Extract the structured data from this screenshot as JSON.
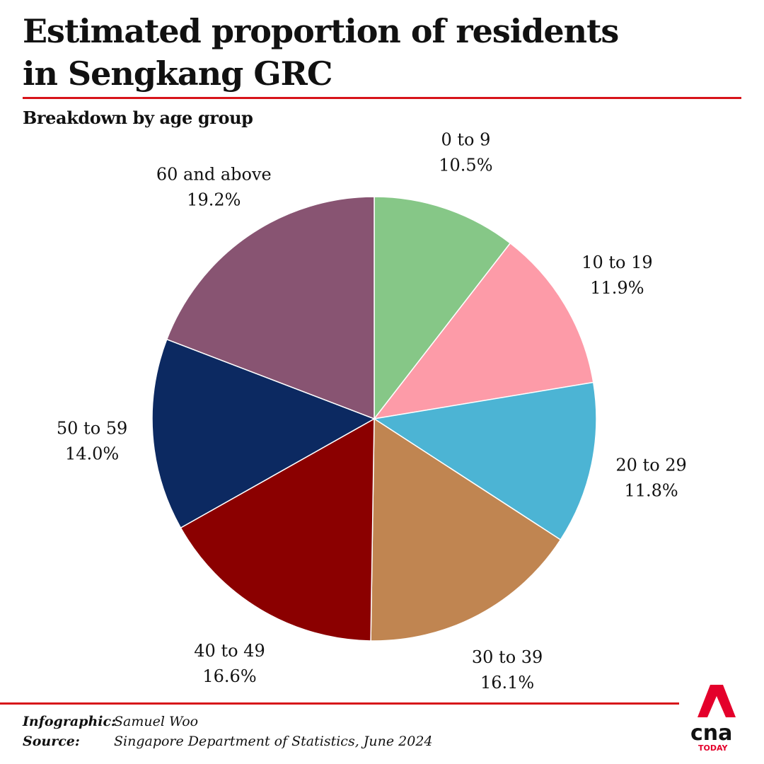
{
  "header": {
    "title_line1": "Estimated proportion of residents",
    "title_line2": "in Sengkang GRC",
    "subtitle": "Breakdown by age group"
  },
  "chart_data": {
    "type": "pie",
    "title": "Estimated proportion of residents in Sengkang GRC",
    "subtitle": "Breakdown by age group",
    "start": "12 o'clock",
    "direction": "clockwise",
    "slices": [
      {
        "label": "0 to 9",
        "value": 10.5,
        "value_label": "10.5%",
        "color": "#86c787"
      },
      {
        "label": "10 to 19",
        "value": 11.9,
        "value_label": "11.9%",
        "color": "#fd9ba8"
      },
      {
        "label": "20 to 29",
        "value": 11.8,
        "value_label": "11.8%",
        "color": "#4cb4d4"
      },
      {
        "label": "30 to 39",
        "value": 16.1,
        "value_label": "16.1%",
        "color": "#c08551"
      },
      {
        "label": "40 to 49",
        "value": 16.6,
        "value_label": "16.6%",
        "color": "#8b0000"
      },
      {
        "label": "50 to 59",
        "value": 14.0,
        "value_label": "14.0%",
        "color": "#0c2961"
      },
      {
        "label": "60 and above",
        "value": 19.2,
        "value_label": "19.2%",
        "color": "#885472"
      }
    ]
  },
  "footer": {
    "infographic_label": "Infographic:",
    "infographic_value": "Samuel Woo",
    "source_label": "Source:",
    "source_value": "Singapore Department of Statistics, June 2024"
  },
  "brand": {
    "name": "cna",
    "sub": "TODAY",
    "accent_color": "#e4002b"
  },
  "colors": {
    "rule": "#d7141a",
    "text": "#111111",
    "background": "#ffffff"
  }
}
